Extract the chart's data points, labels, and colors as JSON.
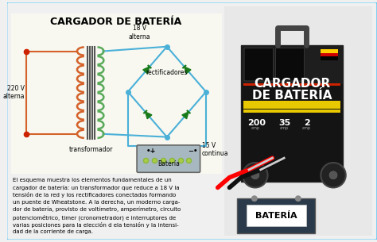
{
  "title": "CARGADOR DE BATERÍA",
  "bg_color": "#f0f0f0",
  "border_color": "#5bc8f5",
  "diagram_bg": "#ddeef8",
  "label_220v": "220 V\nalterna",
  "label_18v": "18 V\nalterna",
  "label_rectificadores": "rectificadores",
  "label_15v": "15 V\ncontinua",
  "label_transformador": "transformador",
  "label_bateria": "Batería",
  "coil_color_left": "#d4622a",
  "coil_color_right": "#5aaa5a",
  "diode_color": "#1a7a1a",
  "wire_color": "#4ab0d8",
  "battery_bg": "#a8b8c0",
  "description_line1": "El esquema muestra los elementos fundamentales de un",
  "description_line2": "cargador de batería: un transformador que reduce a 18 V la",
  "description_line3": "tensión de la red y los rectificadores conectados formando",
  "description_line4": "un puente de Wheatstone. A la derecha, un moderno carga-",
  "description_line5": "dor de batería, provisto de voltímetro, amperímetro, circuito",
  "description_line6": "potenciométrico, timer (cronometrador) e interruptores de",
  "description_line7": "varias posiciones para la elección d ela tensión y la intensi-",
  "description_line8": "dad de la corriente de carga.",
  "charger_bg": "#111111",
  "charger_label": "CARGADOR\nDE BATERÍA",
  "charger_stripe_color": "#e8c800",
  "battery_box_color": "#2a3a4a",
  "battery_label": "BATERÍA"
}
